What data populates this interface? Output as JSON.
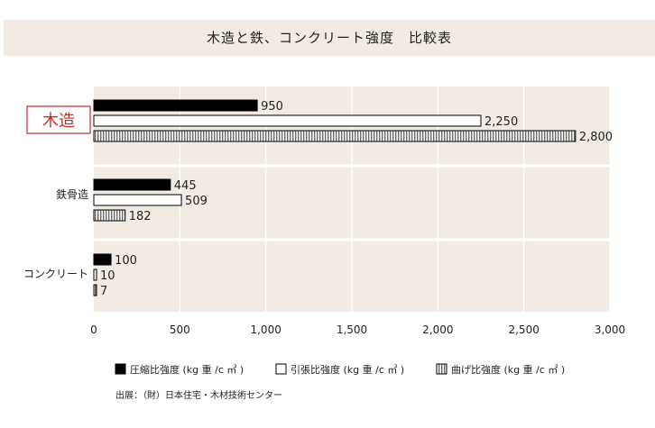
{
  "title": "木造と鉄、コンクリート強度　比較表",
  "source_note": "出展：（財）日本住宅・木材技術センター",
  "colors": {
    "plot_bg": "#f2ebe4",
    "grid": "#ffffff",
    "compressive": "#000000",
    "tensile": "#ffffff",
    "bending": "#c8c8c8",
    "highlight_label": "#cc2a2a"
  },
  "chart_data": {
    "type": "bar",
    "orientation": "horizontal",
    "categories": [
      "木造",
      "鉄骨造",
      "コンクリート"
    ],
    "highlighted_category": "木造",
    "series": [
      {
        "name": "圧縮比強度 (kg 重 /c ㎡ )",
        "fill": "solid-black",
        "values": [
          950,
          445,
          100
        ],
        "labels": [
          "950",
          "445",
          "100"
        ]
      },
      {
        "name": "引張比強度 (kg 重 /c ㎡ )",
        "fill": "white",
        "values": [
          2250,
          509,
          10
        ],
        "labels": [
          "2,250",
          "509",
          "10"
        ]
      },
      {
        "name": "曲げ比強度 (kg 重 /c ㎡ )",
        "fill": "vertical-hatch",
        "values": [
          2800,
          182,
          7
        ],
        "labels": [
          "2,800",
          "182",
          "7"
        ]
      }
    ],
    "x_ticks": [
      0,
      500,
      1000,
      1500,
      2000,
      2500,
      3000
    ],
    "x_tick_labels": [
      "0",
      "500",
      "1,000",
      "1,500",
      "2,000",
      "2,500",
      "3,000"
    ],
    "xlim": [
      0,
      3000
    ],
    "grid": true,
    "legend_position": "bottom"
  }
}
